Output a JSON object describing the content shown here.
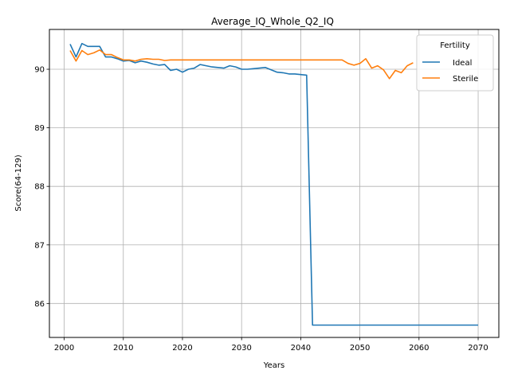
{
  "chart_data": {
    "type": "line",
    "title": "Average_IQ_Whole_Q2_IQ",
    "xlabel": "Years",
    "ylabel": "Score(64-129)",
    "xlim": [
      1997.5,
      2073.5
    ],
    "ylim": [
      85.42,
      90.68
    ],
    "xticks": [
      2000,
      2010,
      2020,
      2030,
      2040,
      2050,
      2060,
      2070
    ],
    "yticks": [
      86,
      87,
      88,
      89,
      90
    ],
    "grid": true,
    "legend": {
      "title": "Fertility",
      "placement": "top-right"
    },
    "series": [
      {
        "name": "Ideal",
        "color": "#1f77b4",
        "x": [
          2001,
          2002,
          2003,
          2004,
          2005,
          2006,
          2007,
          2008,
          2009,
          2010,
          2011,
          2012,
          2013,
          2014,
          2015,
          2016,
          2017,
          2018,
          2019,
          2020,
          2021,
          2022,
          2023,
          2024,
          2025,
          2026,
          2027,
          2028,
          2029,
          2030,
          2031,
          2032,
          2033,
          2034,
          2035,
          2036,
          2037,
          2038,
          2039,
          2040,
          2041,
          2042,
          2043,
          2050,
          2060,
          2070
        ],
        "y": [
          90.43,
          90.21,
          90.44,
          90.39,
          90.39,
          90.39,
          90.21,
          90.21,
          90.18,
          90.14,
          90.15,
          90.11,
          90.14,
          90.12,
          90.09,
          90.07,
          90.08,
          89.98,
          90.0,
          89.95,
          90.0,
          90.02,
          90.08,
          90.06,
          90.04,
          90.03,
          90.02,
          90.06,
          90.04,
          90.0,
          90.0,
          90.01,
          90.02,
          90.03,
          89.99,
          89.95,
          89.94,
          89.92,
          89.92,
          89.91,
          89.9,
          85.63,
          85.63,
          85.63,
          85.63,
          85.63
        ]
      },
      {
        "name": "Sterile",
        "color": "#ff7f0e",
        "x": [
          2001,
          2002,
          2003,
          2004,
          2005,
          2006,
          2007,
          2008,
          2009,
          2010,
          2011,
          2012,
          2013,
          2014,
          2015,
          2016,
          2017,
          2018,
          2020,
          2025,
          2030,
          2035,
          2040,
          2045,
          2047,
          2048,
          2049,
          2050,
          2051,
          2052,
          2053,
          2054,
          2055,
          2056,
          2057,
          2058,
          2059
        ],
        "y": [
          90.32,
          90.14,
          90.32,
          90.25,
          90.28,
          90.33,
          90.25,
          90.25,
          90.2,
          90.16,
          90.16,
          90.14,
          90.17,
          90.18,
          90.17,
          90.17,
          90.15,
          90.16,
          90.16,
          90.16,
          90.16,
          90.16,
          90.16,
          90.16,
          90.16,
          90.1,
          90.07,
          90.1,
          90.18,
          90.02,
          90.06,
          89.99,
          89.84,
          89.98,
          89.94,
          90.06,
          90.11
        ]
      }
    ]
  }
}
